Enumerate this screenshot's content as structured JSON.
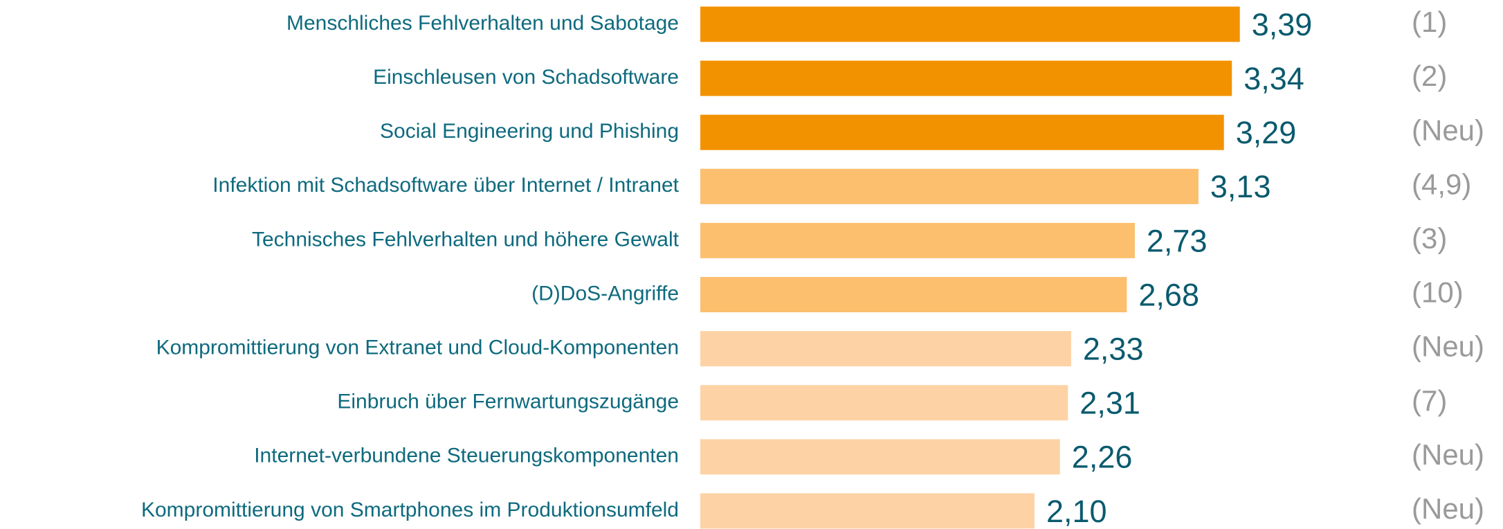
{
  "chart_data": {
    "type": "bar",
    "orientation": "horizontal",
    "categories": [
      "Menschliches Fehlverhalten und Sabotage",
      "Einschleusen von Schadsoftware",
      "Social Engineering und Phishing",
      "Infektion mit Schadsoftware über Internet / Intranet",
      "Technisches Fehlverhalten und höhere Gewalt",
      "(D)DoS-Angriffe",
      "Kompromittierung von Extranet und Cloud-Komponenten",
      "Einbruch über Fernwartungszugänge",
      "Internet-verbundene Steuerungskomponenten",
      "Kompromittierung von Smartphones im Produktionsumfeld"
    ],
    "values": [
      3.39,
      3.34,
      3.29,
      3.13,
      2.73,
      2.68,
      2.33,
      2.31,
      2.26,
      2.1
    ],
    "value_labels": [
      "3,39",
      "3,34",
      "3,29",
      "3,13",
      "2,73",
      "2,68",
      "2,33",
      "2,31",
      "2,26",
      "2,10"
    ],
    "colors": [
      "#f39200",
      "#f39200",
      "#f39200",
      "#fbbf6e",
      "#fbbf6e",
      "#fbbf6e",
      "#fdd3a5",
      "#fdd3a5",
      "#fdd3a5",
      "#fdd3a5"
    ],
    "previous_ranks": [
      "(1)",
      "(2)",
      "(Neu)",
      "(4,9)",
      "(3)",
      "(10)",
      "(Neu)",
      "(7)",
      "(Neu)",
      "(Neu)"
    ],
    "xlim": [
      0,
      4
    ]
  }
}
